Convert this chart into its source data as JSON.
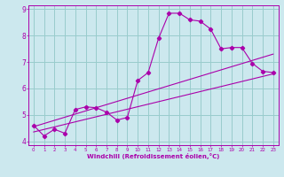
{
  "xlabel": "Windchill (Refroidissement éolien,°C)",
  "bg_color": "#cce8ee",
  "line_color": "#aa00aa",
  "grid_color": "#99cccc",
  "xlim": [
    -0.5,
    23.5
  ],
  "ylim": [
    3.85,
    9.15
  ],
  "yticks": [
    4,
    5,
    6,
    7,
    8,
    9
  ],
  "xticks": [
    0,
    1,
    2,
    3,
    4,
    5,
    6,
    7,
    8,
    9,
    10,
    11,
    12,
    13,
    14,
    15,
    16,
    17,
    18,
    19,
    20,
    21,
    22,
    23
  ],
  "main_x": [
    0,
    1,
    2,
    3,
    4,
    5,
    6,
    7,
    8,
    9,
    10,
    11,
    12,
    13,
    14,
    15,
    16,
    17,
    18,
    19,
    20,
    21,
    22,
    23
  ],
  "main_y": [
    4.6,
    4.2,
    4.45,
    4.3,
    5.2,
    5.3,
    5.27,
    5.1,
    4.8,
    4.9,
    6.3,
    6.6,
    7.9,
    8.85,
    8.85,
    8.6,
    8.55,
    8.25,
    7.5,
    7.55,
    7.55,
    6.95,
    6.65,
    6.6
  ],
  "line2_x": [
    0,
    23
  ],
  "line2_y": [
    4.55,
    7.3
  ],
  "line3_x": [
    0,
    23
  ],
  "line3_y": [
    4.35,
    6.55
  ],
  "marker": "D",
  "markersize": 2.2,
  "linewidth": 0.8
}
